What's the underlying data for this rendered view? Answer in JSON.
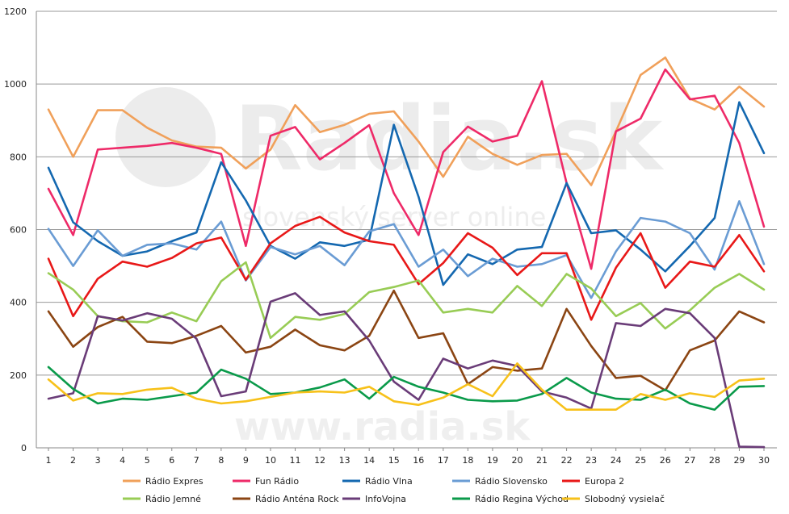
{
  "chart_data": {
    "type": "line",
    "title": "",
    "xlabel": "",
    "ylabel": "",
    "ylim": [
      0,
      1200
    ],
    "yticks": [
      0,
      200,
      400,
      600,
      800,
      1000,
      1200
    ],
    "grid": true,
    "legend_position": "bottom",
    "x": [
      1,
      2,
      3,
      4,
      5,
      6,
      7,
      8,
      9,
      10,
      11,
      12,
      13,
      14,
      15,
      16,
      17,
      18,
      19,
      20,
      21,
      22,
      23,
      24,
      25,
      26,
      27,
      28,
      29,
      30
    ],
    "series": [
      {
        "name": "Rádio Expres",
        "color": "#f0a05a",
        "values": [
          930,
          800,
          928,
          928,
          880,
          845,
          828,
          825,
          768,
          820,
          942,
          868,
          888,
          918,
          925,
          842,
          745,
          855,
          808,
          778,
          805,
          808,
          722,
          870,
          1025,
          1073,
          960,
          930,
          993,
          938
        ]
      },
      {
        "name": "Fun Rádio",
        "color": "#ee2a68",
        "values": [
          712,
          585,
          820,
          825,
          830,
          838,
          825,
          808,
          555,
          858,
          882,
          793,
          838,
          887,
          700,
          585,
          813,
          883,
          842,
          858,
          1008,
          728,
          492,
          870,
          905,
          1040,
          958,
          968,
          838,
          608
        ]
      },
      {
        "name": "Rádio Vlna",
        "color": "#1468b0",
        "values": [
          770,
          620,
          568,
          528,
          540,
          568,
          592,
          785,
          680,
          555,
          520,
          565,
          555,
          572,
          888,
          690,
          448,
          532,
          505,
          545,
          552,
          728,
          590,
          598,
          545,
          485,
          555,
          632,
          950,
          810
        ]
      },
      {
        "name": "Rádio Slovensko",
        "color": "#6a9cd4",
        "values": [
          602,
          500,
          598,
          528,
          558,
          562,
          545,
          622,
          460,
          552,
          532,
          555,
          502,
          595,
          615,
          498,
          545,
          472,
          520,
          498,
          505,
          530,
          412,
          540,
          632,
          622,
          590,
          490,
          678,
          505
        ]
      },
      {
        "name": "Europa 2",
        "color": "#e81818",
        "values": [
          520,
          362,
          465,
          512,
          498,
          522,
          562,
          578,
          462,
          562,
          610,
          635,
          592,
          568,
          558,
          450,
          508,
          590,
          550,
          475,
          535,
          535,
          352,
          495,
          590,
          440,
          512,
          498,
          585,
          485
        ]
      },
      {
        "name": "Rádio Jemné",
        "color": "#98cc55",
        "values": [
          480,
          435,
          362,
          348,
          345,
          372,
          348,
          458,
          510,
          302,
          360,
          352,
          368,
          428,
          442,
          460,
          372,
          382,
          372,
          445,
          390,
          478,
          438,
          362,
          398,
          328,
          378,
          440,
          478,
          435
        ]
      },
      {
        "name": "Rádio Anténa Rock",
        "color": "#8b4513",
        "values": [
          375,
          278,
          332,
          360,
          292,
          288,
          308,
          335,
          262,
          278,
          325,
          282,
          268,
          308,
          432,
          302,
          315,
          175,
          222,
          212,
          218,
          382,
          280,
          192,
          198,
          158,
          268,
          295,
          375,
          345
        ]
      },
      {
        "name": "InfoVojna",
        "color": "#6a3c78",
        "values": [
          135,
          150,
          362,
          350,
          370,
          355,
          300,
          142,
          155,
          402,
          425,
          365,
          375,
          295,
          182,
          132,
          245,
          218,
          240,
          225,
          155,
          138,
          108,
          343,
          335,
          382,
          370,
          302,
          3,
          2
        ]
      },
      {
        "name": "Rádio Regina Východ",
        "color": "#0a9a4a",
        "values": [
          222,
          162,
          122,
          135,
          132,
          142,
          152,
          215,
          190,
          148,
          152,
          166,
          188,
          135,
          195,
          168,
          152,
          132,
          128,
          130,
          148,
          192,
          152,
          135,
          132,
          160,
          122,
          105,
          168,
          170
        ]
      },
      {
        "name": "Slobodný vysielač",
        "color": "#f7c11a",
        "values": [
          188,
          130,
          150,
          148,
          160,
          165,
          135,
          122,
          128,
          140,
          152,
          155,
          152,
          168,
          128,
          118,
          138,
          175,
          142,
          232,
          160,
          105,
          105,
          105,
          148,
          132,
          150,
          140,
          185,
          190
        ]
      }
    ]
  },
  "watermark": {
    "brand": "Radia.sk",
    "tagline": "slovenský server online",
    "url": "www.radia.sk"
  }
}
